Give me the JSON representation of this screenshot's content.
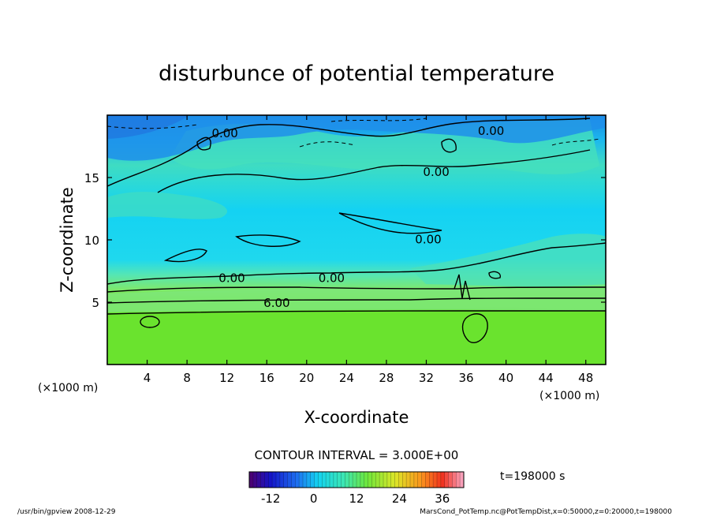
{
  "chart_data": {
    "type": "heatmap",
    "title": "disturbunce of potential temperature",
    "xlabel": "X-coordinate",
    "ylabel": "Z-coordinate",
    "x_unit_left": "(×1000 m)",
    "x_unit_right": "(×1000 m)",
    "xlim": [
      0,
      50
    ],
    "ylim": [
      0,
      20
    ],
    "x_ticks": [
      4,
      8,
      12,
      16,
      20,
      24,
      28,
      32,
      36,
      40,
      44,
      48
    ],
    "y_ticks": [
      5,
      10,
      15
    ],
    "contour_interval_text": "CONTOUR INTERVAL = 3.000E+00",
    "time_text": "t=198000 s",
    "colorbar": {
      "min": -18,
      "max": 42,
      "ticks": [
        -12,
        0,
        12,
        24,
        36
      ]
    },
    "contour_labels": [
      {
        "text": "0.00",
        "x": 11.8,
        "z": 18.6
      },
      {
        "text": "0.00",
        "x": 38.5,
        "z": 18.8
      },
      {
        "text": "0.00",
        "x": 33.0,
        "z": 15.5
      },
      {
        "text": "0.00",
        "x": 32.2,
        "z": 10.1
      },
      {
        "text": "0.00",
        "x": 12.5,
        "z": 7.0
      },
      {
        "text": "0.00",
        "x": 22.5,
        "z": 7.0
      },
      {
        "text": "6.00",
        "x": 17.0,
        "z": 5.0
      }
    ]
  },
  "footer": {
    "left": "/usr/bin/gpview   2008-12-29",
    "right": "MarsCond_PotTemp.nc@PotTempDist,x=0:50000,z=0:20000,t=198000"
  }
}
